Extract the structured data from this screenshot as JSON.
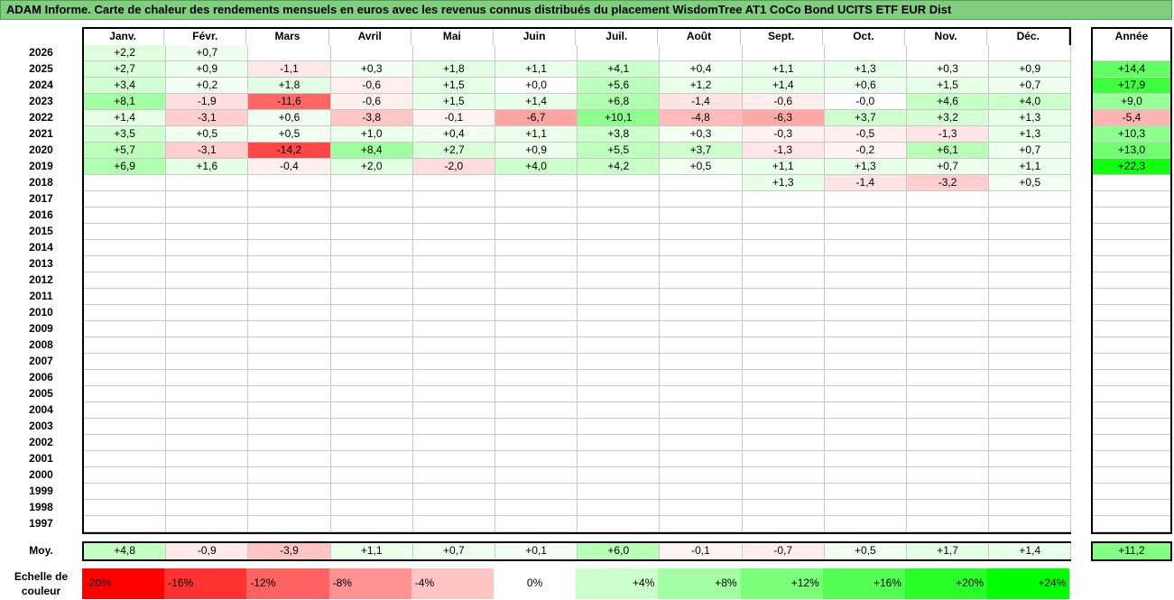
{
  "title": "ADAM Informe. Carte de chaleur des rendements mensuels en euros avec les revenus connus distribués du placement WisdomTree AT1 CoCo Bond UCITS ETF EUR Dist",
  "year_header": "Année",
  "average_label": "Moy.",
  "legend": {
    "label": "Echelle de couleur",
    "steps": [
      "-20%",
      "-16%",
      "-12%",
      "-8%",
      "-4%",
      "0%",
      "+4%",
      "+8%",
      "+12%",
      "+16%",
      "+20%",
      "+24%"
    ],
    "step_values": [
      -20,
      -16,
      -12,
      -8,
      -4,
      0,
      4,
      8,
      12,
      16,
      20,
      24
    ]
  },
  "chart_data": {
    "type": "heatmap",
    "months": [
      "Janv.",
      "Févr.",
      "Mars",
      "Avril",
      "Mai",
      "Juin",
      "Juil.",
      "Août",
      "Sept.",
      "Oct.",
      "Nov.",
      "Déc."
    ],
    "years": [
      "2026",
      "2025",
      "2024",
      "2023",
      "2022",
      "2021",
      "2020",
      "2019",
      "2018",
      "2017",
      "2016",
      "2015",
      "2014",
      "2013",
      "2012",
      "2011",
      "2010",
      "2009",
      "2008",
      "2007",
      "2006",
      "2005",
      "2004",
      "2003",
      "2002",
      "2001",
      "2000",
      "1999",
      "1998",
      "1997"
    ],
    "values": [
      [
        "+2,2",
        "+0,7",
        "",
        "",
        "",
        "",
        "",
        "",
        "",
        "",
        "",
        ""
      ],
      [
        "+2,7",
        "+0,9",
        "-1,1",
        "+0,3",
        "+1,8",
        "+1,1",
        "+4,1",
        "+0,4",
        "+1,1",
        "+1,3",
        "+0,3",
        "+0,9"
      ],
      [
        "+3,4",
        "+0,2",
        "+1,8",
        "-0,6",
        "+1,5",
        "+0,0",
        "+5,6",
        "+1,2",
        "+1,4",
        "+0,6",
        "+1,5",
        "+0,7"
      ],
      [
        "+8,1",
        "-1,9",
        "-11,6",
        "-0,6",
        "+1,5",
        "+1,4",
        "+6,8",
        "-1,4",
        "-0,6",
        "-0,0",
        "+4,6",
        "+4,0"
      ],
      [
        "+1,4",
        "-3,1",
        "+0,6",
        "-3,8",
        "-0,1",
        "-6,7",
        "+10,1",
        "-4,8",
        "-6,3",
        "+3,7",
        "+3,2",
        "+1,3"
      ],
      [
        "+3,5",
        "+0,5",
        "+0,5",
        "+1,0",
        "+0,4",
        "+1,1",
        "+3,8",
        "+0,3",
        "-0,3",
        "-0,5",
        "-1,3",
        "+1,3"
      ],
      [
        "+5,7",
        "-3,1",
        "-14,2",
        "+8,4",
        "+2,7",
        "+0,9",
        "+5,5",
        "+3,7",
        "-1,3",
        "-0,2",
        "+6,1",
        "+0,7"
      ],
      [
        "+6,9",
        "+1,6",
        "-0,4",
        "+2,0",
        "-2,0",
        "+4,0",
        "+4,2",
        "+0,5",
        "+1,1",
        "+1,3",
        "+0,7",
        "+1,1"
      ],
      [
        "",
        "",
        "",
        "",
        "",
        "",
        "",
        "",
        "+1,3",
        "-1,4",
        "-3,2",
        "+0,5"
      ],
      [
        "",
        "",
        "",
        "",
        "",
        "",
        "",
        "",
        "",
        "",
        "",
        ""
      ],
      [
        "",
        "",
        "",
        "",
        "",
        "",
        "",
        "",
        "",
        "",
        "",
        ""
      ],
      [
        "",
        "",
        "",
        "",
        "",
        "",
        "",
        "",
        "",
        "",
        "",
        ""
      ],
      [
        "",
        "",
        "",
        "",
        "",
        "",
        "",
        "",
        "",
        "",
        "",
        ""
      ],
      [
        "",
        "",
        "",
        "",
        "",
        "",
        "",
        "",
        "",
        "",
        "",
        ""
      ],
      [
        "",
        "",
        "",
        "",
        "",
        "",
        "",
        "",
        "",
        "",
        "",
        ""
      ],
      [
        "",
        "",
        "",
        "",
        "",
        "",
        "",
        "",
        "",
        "",
        "",
        ""
      ],
      [
        "",
        "",
        "",
        "",
        "",
        "",
        "",
        "",
        "",
        "",
        "",
        ""
      ],
      [
        "",
        "",
        "",
        "",
        "",
        "",
        "",
        "",
        "",
        "",
        "",
        ""
      ],
      [
        "",
        "",
        "",
        "",
        "",
        "",
        "",
        "",
        "",
        "",
        "",
        ""
      ],
      [
        "",
        "",
        "",
        "",
        "",
        "",
        "",
        "",
        "",
        "",
        "",
        ""
      ],
      [
        "",
        "",
        "",
        "",
        "",
        "",
        "",
        "",
        "",
        "",
        "",
        ""
      ],
      [
        "",
        "",
        "",
        "",
        "",
        "",
        "",
        "",
        "",
        "",
        "",
        ""
      ],
      [
        "",
        "",
        "",
        "",
        "",
        "",
        "",
        "",
        "",
        "",
        "",
        ""
      ],
      [
        "",
        "",
        "",
        "",
        "",
        "",
        "",
        "",
        "",
        "",
        "",
        ""
      ],
      [
        "",
        "",
        "",
        "",
        "",
        "",
        "",
        "",
        "",
        "",
        "",
        ""
      ],
      [
        "",
        "",
        "",
        "",
        "",
        "",
        "",
        "",
        "",
        "",
        "",
        ""
      ],
      [
        "",
        "",
        "",
        "",
        "",
        "",
        "",
        "",
        "",
        "",
        "",
        ""
      ],
      [
        "",
        "",
        "",
        "",
        "",
        "",
        "",
        "",
        "",
        "",
        "",
        ""
      ],
      [
        "",
        "",
        "",
        "",
        "",
        "",
        "",
        "",
        "",
        "",
        "",
        ""
      ],
      [
        "",
        "",
        "",
        "",
        "",
        "",
        "",
        "",
        "",
        "",
        "",
        ""
      ]
    ],
    "annual": [
      "",
      "+14,4",
      "+17,9",
      "+9,0",
      "-5,4",
      "+10,3",
      "+13,0",
      "+22,3",
      "",
      "",
      "",
      "",
      "",
      "",
      "",
      "",
      "",
      "",
      "",
      "",
      "",
      "",
      "",
      "",
      "",
      "",
      "",
      "",
      "",
      ""
    ],
    "monthly_average": [
      "+4,8",
      "-0,9",
      "-3,9",
      "+1,1",
      "+0,7",
      "+0,1",
      "+6,0",
      "-0,1",
      "-0,7",
      "+0,5",
      "+1,7",
      "+1,4"
    ],
    "overall_average": "+11,2"
  }
}
